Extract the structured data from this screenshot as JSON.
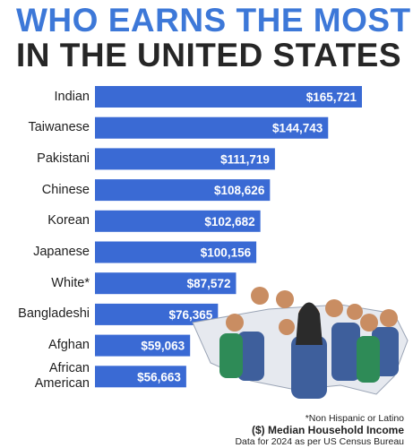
{
  "chart_data": {
    "type": "bar",
    "orientation": "horizontal",
    "title": "WHO EARNS THE MOST",
    "subtitle": "IN THE UNITED STATES",
    "categories": [
      "Indian",
      "Taiwanese",
      "Pakistani",
      "Chinese",
      "Korean",
      "Japanese",
      "White*",
      "Bangladeshi",
      "Afghan",
      "African American"
    ],
    "values": [
      165721,
      144743,
      111719,
      108626,
      102682,
      100156,
      87572,
      76365,
      59063,
      56663
    ],
    "value_labels": [
      "$165,721",
      "$144,743",
      "$111,719",
      "$108,626",
      "$102,682",
      "$100,156",
      "$87,572",
      "$76,365",
      "$59,063",
      "$56,663"
    ],
    "color": "#3a6ad4",
    "annotations": [
      "*Non Hispanic or Latino",
      "($) Median Household Income",
      "Data for 2024 as per US Census Bureau"
    ]
  }
}
